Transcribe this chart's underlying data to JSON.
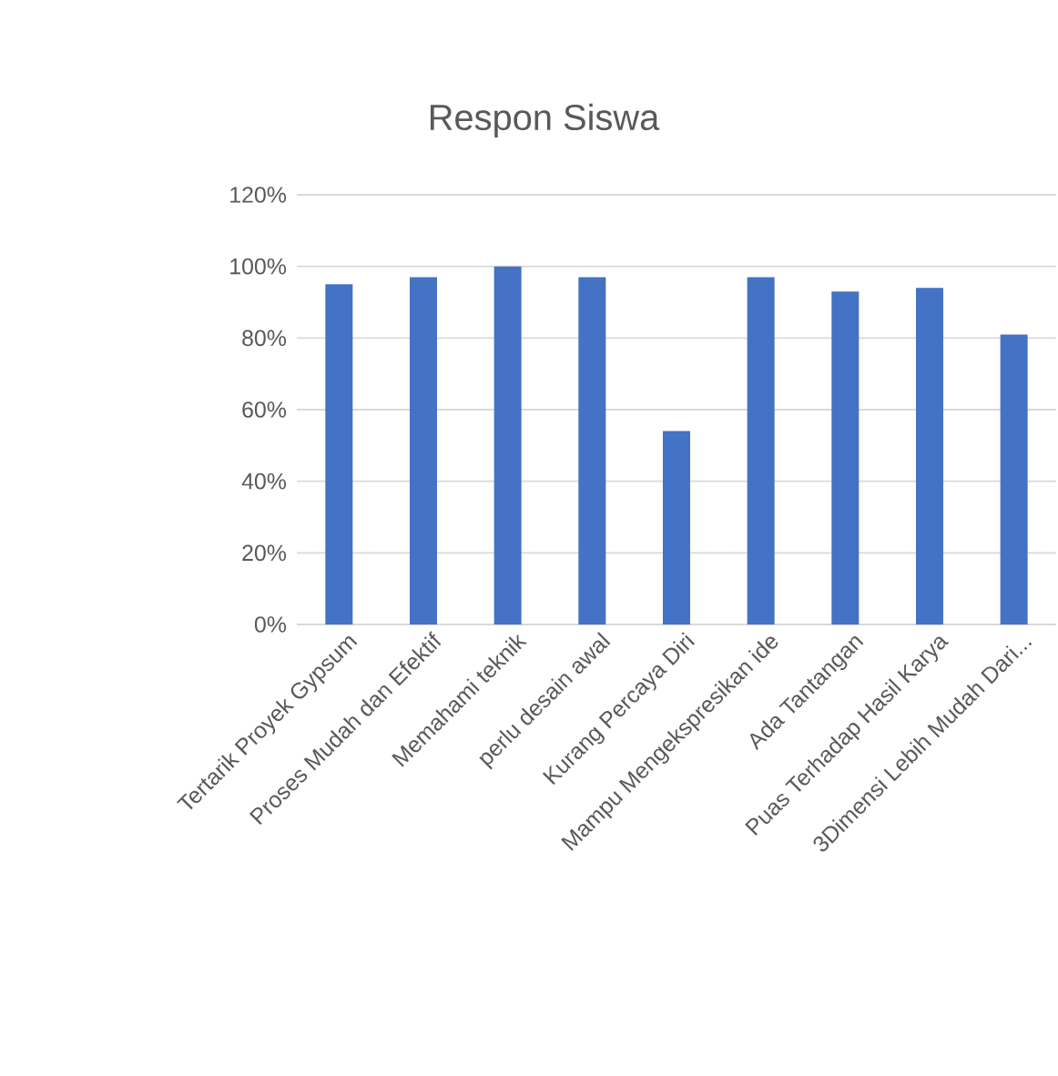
{
  "chart_data": {
    "type": "bar",
    "title": "Respon Siswa",
    "categories": [
      "Tertarik Proyek Gypsum",
      "Proses Mudah dan Efektif",
      "Memahami teknik",
      "perlu desain awal",
      "Kurang Percaya Diri",
      "Mampu Mengekspresikan ide",
      "Ada Tantangan",
      "Puas Terhadap Hasil Karya",
      "3Dimensi Lebih Mudah Dari..."
    ],
    "values": [
      95,
      97,
      100,
      97,
      54,
      97,
      93,
      94,
      81
    ],
    "color": "#4472c4",
    "ylim": [
      0,
      120
    ],
    "yticks": [
      {
        "value": 0,
        "label": "0%"
      },
      {
        "value": 20,
        "label": "20%"
      },
      {
        "value": 40,
        "label": "40%"
      },
      {
        "value": 60,
        "label": "60%"
      },
      {
        "value": 80,
        "label": "80%"
      },
      {
        "value": 100,
        "label": "100%"
      },
      {
        "value": 120,
        "label": "120%"
      }
    ],
    "grid": "y"
  }
}
